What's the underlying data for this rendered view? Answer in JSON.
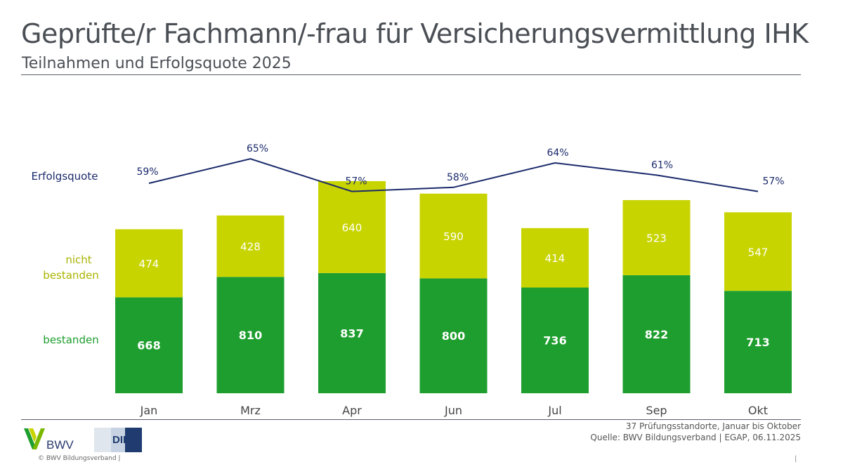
{
  "title": "Geprüfte/r Fachmann/-frau für Versicherungsvermittlung IHK",
  "subtitle": "Teilnahmen und Erfolgsquote 2025",
  "chart_data": {
    "type": "bar",
    "stacked": true,
    "categories": [
      "Jan",
      "Mrz",
      "Apr",
      "Jun",
      "Jul",
      "Sep",
      "Okt"
    ],
    "series": [
      {
        "name": "bestanden",
        "values": [
          668,
          810,
          837,
          800,
          736,
          822,
          713
        ],
        "color": "#1e9e2e"
      },
      {
        "name": "nicht bestanden",
        "values": [
          474,
          428,
          640,
          590,
          414,
          523,
          547
        ],
        "color": "#c8d400"
      }
    ],
    "line": {
      "name": "Erfolgsquote",
      "values": [
        59,
        65,
        57,
        58,
        64,
        61,
        57
      ],
      "labels": [
        "59%",
        "65%",
        "57%",
        "58%",
        "64%",
        "61%",
        "57%"
      ],
      "color": "#1b2a6b"
    },
    "labels": {
      "line": "Erfolgsquote",
      "failed_line1": "nicht",
      "failed_line2": "bestanden",
      "passed": "bestanden"
    }
  },
  "footnote": {
    "line1": "37 Prüfungsstandorte, Januar bis Oktober",
    "line2": "Quelle: BWV Bildungsverband | EGAP, 06.11.2025"
  },
  "logos": {
    "bwv": "BWV",
    "dihk": "DIHK"
  },
  "copyright": "© BWV Bildungsverband |",
  "page_marker": "|"
}
